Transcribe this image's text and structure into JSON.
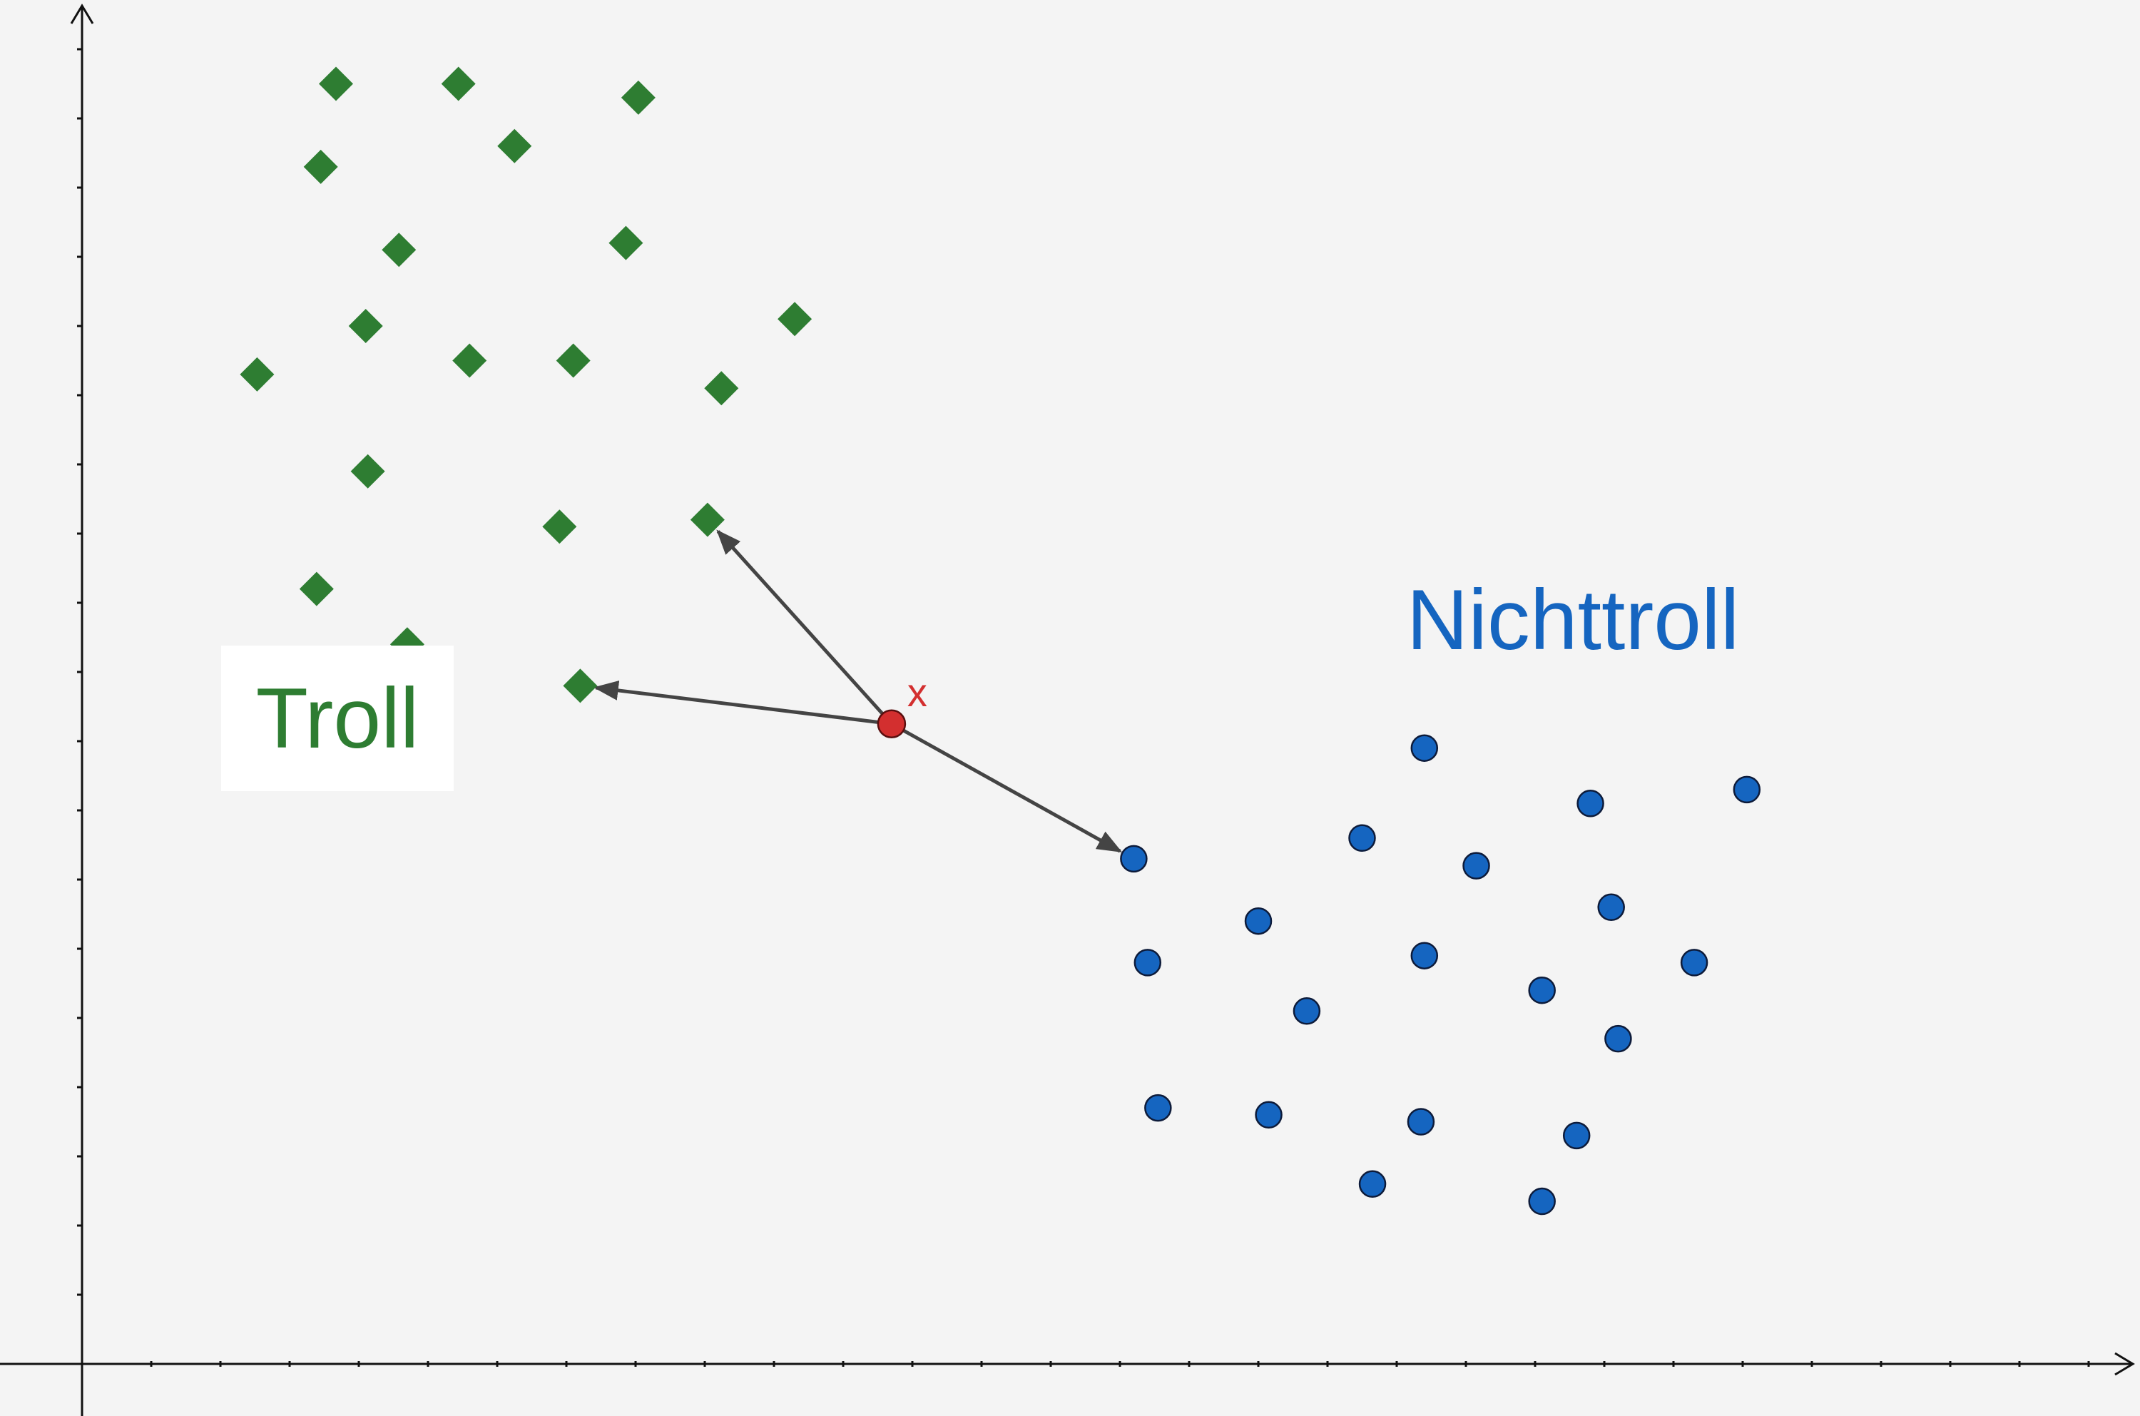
{
  "chart_data": {
    "type": "scatter",
    "title": "",
    "xlabel": "",
    "ylabel": "",
    "xlim": [
      -1,
      30
    ],
    "ylim": [
      -0.75,
      19.8
    ],
    "grid": false,
    "series": [
      {
        "name": "Troll",
        "marker": "diamond",
        "color": "#2e7d32",
        "points": [
          [
            3.67,
            18.5
          ],
          [
            5.44,
            18.5
          ],
          [
            8.04,
            18.3
          ],
          [
            3.45,
            17.3
          ],
          [
            6.25,
            17.6
          ],
          [
            4.58,
            16.1
          ],
          [
            7.86,
            16.2
          ],
          [
            4.1,
            15.0
          ],
          [
            10.3,
            15.1
          ],
          [
            2.53,
            14.3
          ],
          [
            5.6,
            14.5
          ],
          [
            7.1,
            14.5
          ],
          [
            9.24,
            14.1
          ],
          [
            4.13,
            12.9
          ],
          [
            6.9,
            12.1
          ],
          [
            9.04,
            12.2
          ],
          [
            3.39,
            11.2
          ],
          [
            4.7,
            10.4
          ],
          [
            7.2,
            9.8
          ]
        ]
      },
      {
        "name": "Nichttroll",
        "marker": "circle",
        "color": "#1565c0",
        "points": [
          [
            19.4,
            8.9
          ],
          [
            21.8,
            8.1
          ],
          [
            24.06,
            8.3
          ],
          [
            18.5,
            7.6
          ],
          [
            20.15,
            7.2
          ],
          [
            15.2,
            7.3
          ],
          [
            22.1,
            6.6
          ],
          [
            17.0,
            6.4
          ],
          [
            19.4,
            5.9
          ],
          [
            15.4,
            5.8
          ],
          [
            23.3,
            5.8
          ],
          [
            21.1,
            5.4
          ],
          [
            17.7,
            5.1
          ],
          [
            22.2,
            4.7
          ],
          [
            15.55,
            3.7
          ],
          [
            17.15,
            3.6
          ],
          [
            19.35,
            3.5
          ],
          [
            21.6,
            3.3
          ],
          [
            18.65,
            2.6
          ],
          [
            21.1,
            2.35
          ]
        ]
      }
    ],
    "query_point": {
      "label": "x",
      "color": "#d32f2f",
      "x": 11.7,
      "y": 9.25,
      "neighbors": [
        [
          9.04,
          12.2
        ],
        [
          7.2,
          9.8
        ],
        [
          15.2,
          7.3
        ]
      ]
    },
    "labels": {
      "troll": "Troll",
      "nichttroll": "Nichttroll"
    }
  }
}
